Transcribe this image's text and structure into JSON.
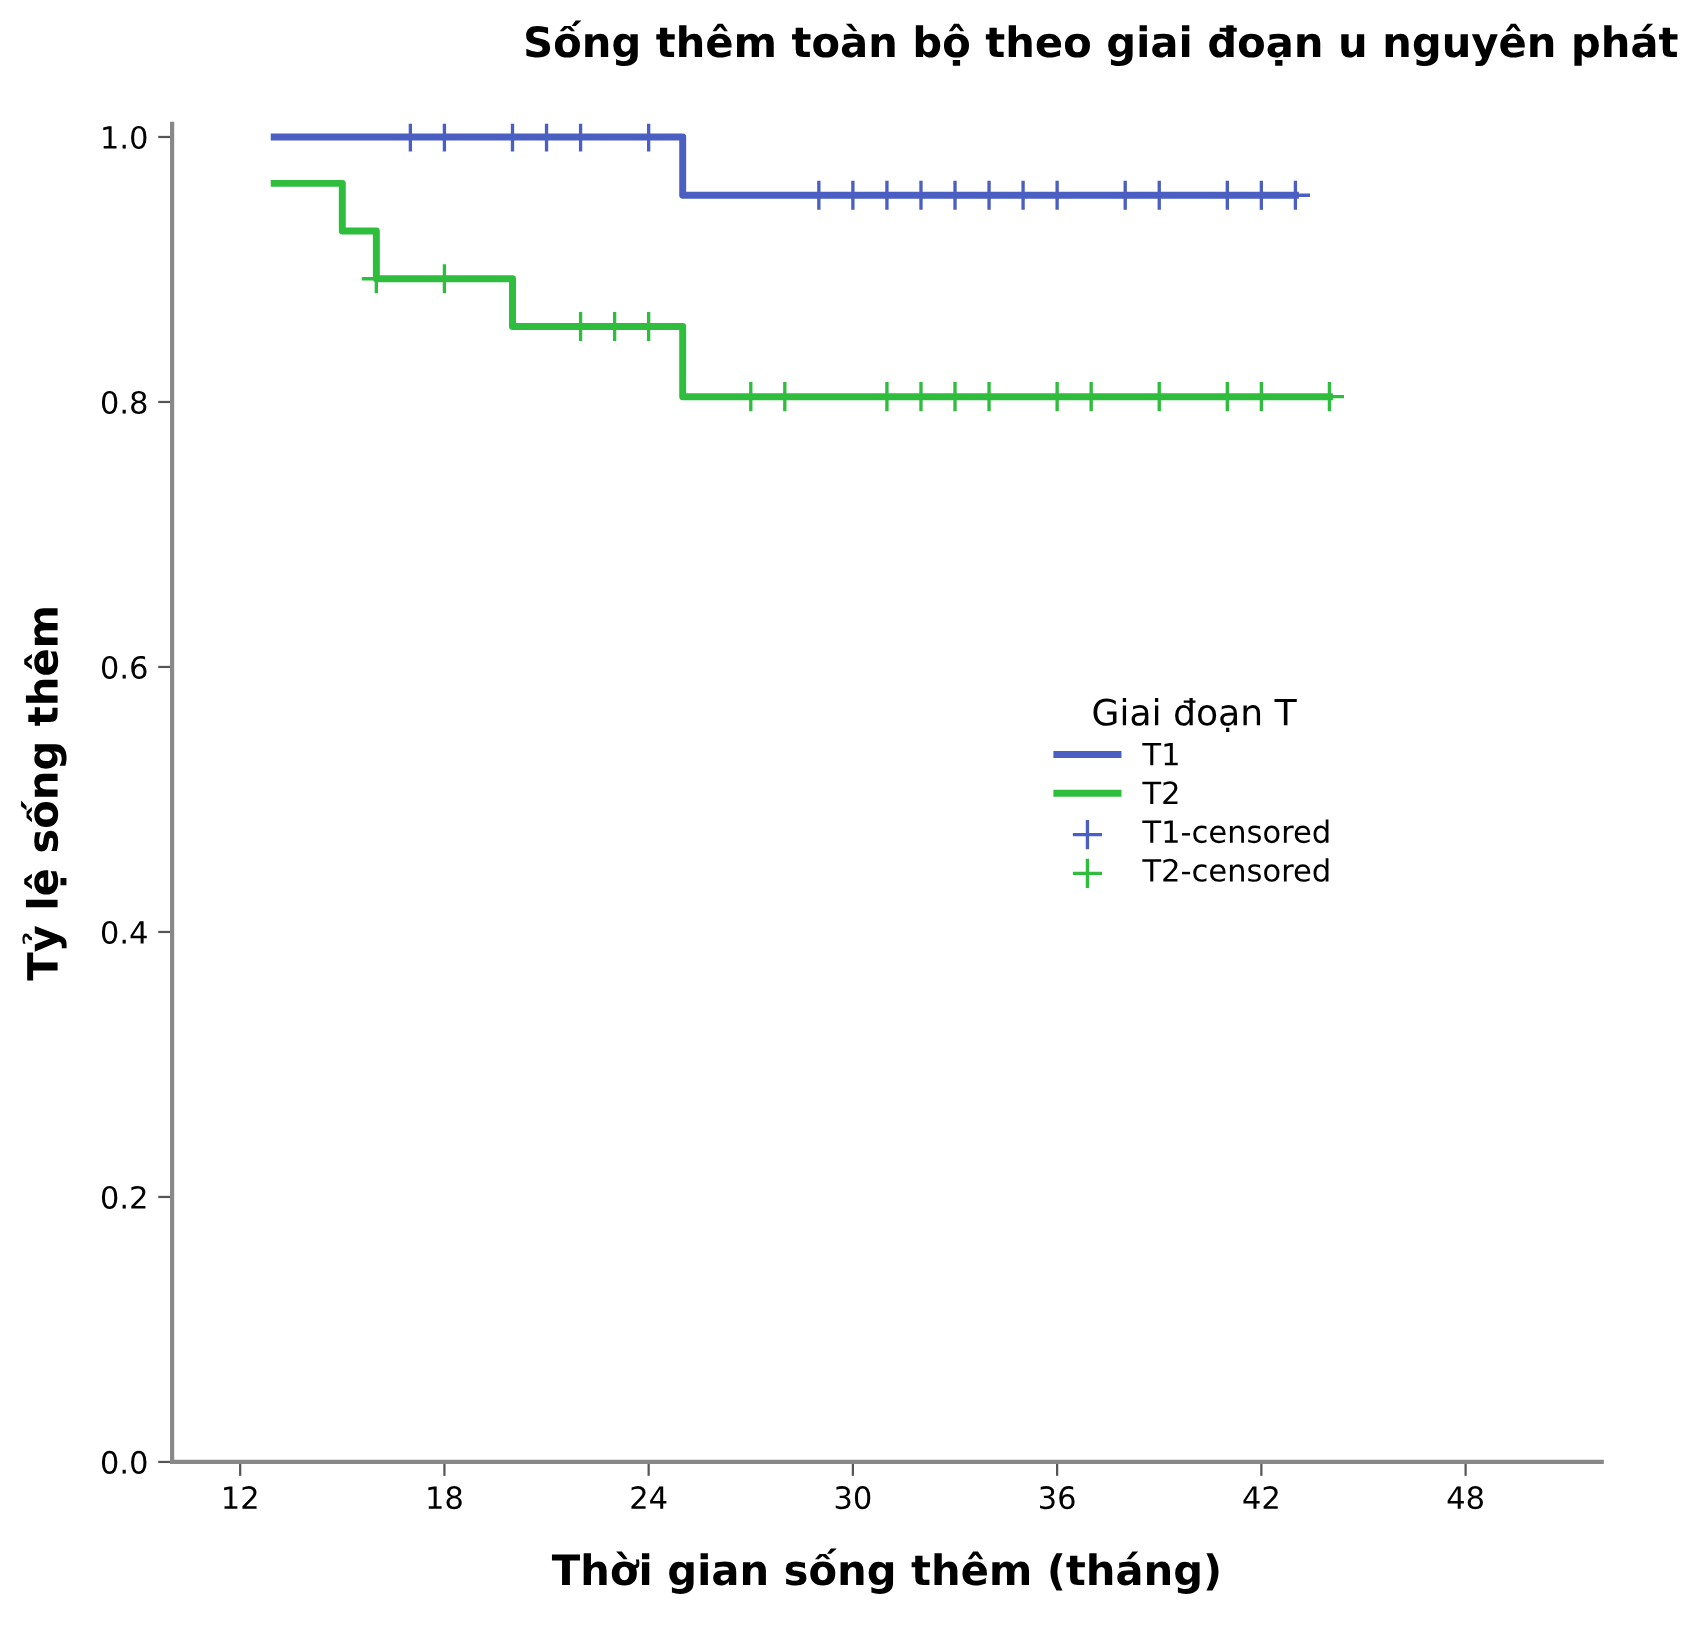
{
  "chart_data": {
    "type": "step",
    "title": "Sống thêm toàn bộ theo giai đoạn u nguyên phát",
    "xlabel": "Thời gian sống thêm (tháng)",
    "ylabel": "Tỷ lệ sống thêm",
    "legend_title": "Giai đoạn T",
    "legend": "center right",
    "grid": false,
    "line_style": "solid",
    "xlim": [
      10,
      52
    ],
    "xticks": [
      12,
      18,
      24,
      30,
      36,
      42,
      48
    ],
    "ylim": [
      0,
      1.01
    ],
    "yticks": [
      {
        "value": 0,
        "label": "0.0"
      },
      {
        "value": 0.2,
        "label": "0.2"
      },
      {
        "value": 0.4,
        "label": "0.4"
      },
      {
        "value": 0.6,
        "label": "0.6"
      },
      {
        "value": 0.8,
        "label": "0.8"
      },
      {
        "value": 1.0,
        "label": "1.0"
      }
    ],
    "series": [
      {
        "name": "T1",
        "marker": "none",
        "color": "#4a5fc1",
        "x": [
          13,
          25,
          43
        ],
        "values": [
          1.0,
          0.956,
          0.956
        ]
      },
      {
        "name": "T2",
        "marker": "none",
        "color": "#2ebd3c",
        "x": [
          13,
          15,
          16,
          20,
          25,
          44
        ],
        "values": [
          0.965,
          0.929,
          0.893,
          0.857,
          0.804,
          0.804
        ]
      },
      {
        "name": "T1-censored",
        "type": "scatter",
        "marker": "cross",
        "color": "#4a5fc1",
        "x": [
          17,
          18,
          20,
          21,
          22,
          24,
          29,
          30,
          31,
          32,
          33,
          34,
          35,
          36,
          38,
          39,
          41,
          42,
          43
        ],
        "values": [
          1.0,
          1.0,
          1.0,
          1.0,
          1.0,
          1.0,
          0.956,
          0.956,
          0.956,
          0.956,
          0.956,
          0.956,
          0.956,
          0.956,
          0.956,
          0.956,
          0.956,
          0.956,
          0.956
        ]
      },
      {
        "name": "T2-censored",
        "type": "scatter",
        "marker": "cross",
        "color": "#2ebd3c",
        "x": [
          16,
          18,
          22,
          23,
          24,
          27,
          28,
          31,
          32,
          33,
          34,
          36,
          37,
          39,
          41,
          42,
          44
        ],
        "values": [
          0.893,
          0.893,
          0.857,
          0.857,
          0.857,
          0.804,
          0.804,
          0.804,
          0.804,
          0.804,
          0.804,
          0.804,
          0.804,
          0.804,
          0.804,
          0.804,
          0.804
        ]
      }
    ]
  }
}
